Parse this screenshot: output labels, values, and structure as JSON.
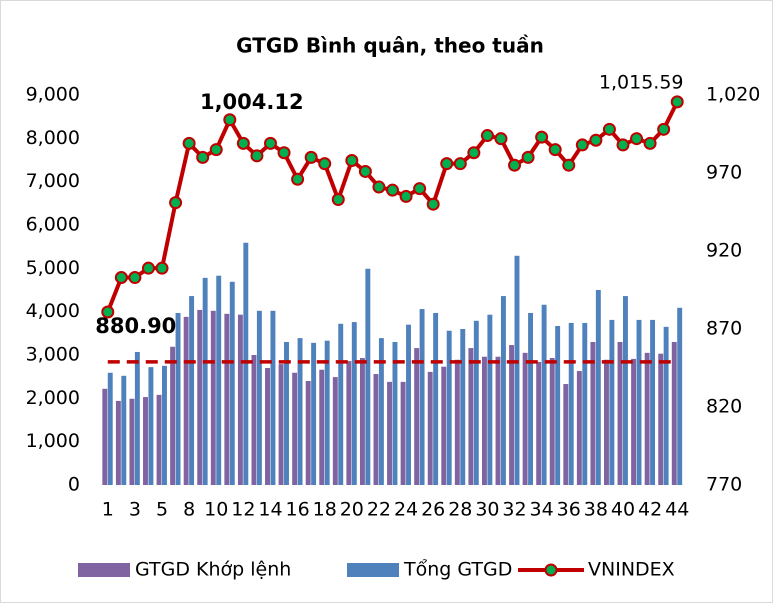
{
  "chart_data": {
    "type": "bar",
    "title": "GTGD Bình quân, theo tuần",
    "categories": [
      "1",
      null,
      "3",
      null,
      "5",
      null,
      "8",
      null,
      "10",
      null,
      "12",
      null,
      "14",
      null,
      "16",
      null,
      "18",
      null,
      "20",
      null,
      "22",
      null,
      "24",
      null,
      "26",
      null,
      "28",
      null,
      "30",
      null,
      "32",
      null,
      "34",
      null,
      "36",
      null,
      "38",
      null,
      "40",
      null,
      "42",
      null,
      "44"
    ],
    "series": [
      {
        "name": "GTGD Khớp lệnh",
        "type": "bar",
        "axis": "y",
        "color": "#8064a2",
        "values": [
          2220,
          1940,
          1990,
          2030,
          2080,
          3190,
          3880,
          4040,
          4020,
          3950,
          3930,
          3000,
          2700,
          2790,
          2590,
          2400,
          2660,
          2490,
          2860,
          2930,
          2560,
          2380,
          2380,
          3160,
          2610,
          2730,
          2890,
          3160,
          2960,
          2960,
          3230,
          3050,
          2840,
          2930,
          2330,
          2630,
          3300,
          2890,
          3300,
          2910,
          3050,
          3030,
          3300
        ]
      },
      {
        "name": "Tổng GTGD",
        "type": "bar",
        "axis": "y",
        "color": "#4f81bd",
        "values": [
          2590,
          2520,
          3070,
          2720,
          2750,
          3970,
          4360,
          4780,
          4830,
          4690,
          5590,
          4020,
          4020,
          3300,
          3390,
          3280,
          3330,
          3720,
          3760,
          4990,
          3390,
          3300,
          3700,
          4060,
          3970,
          3560,
          3600,
          3790,
          3930,
          4360,
          5290,
          3970,
          4160,
          3670,
          3740,
          3740,
          4500,
          3810,
          4360,
          3810,
          3810,
          3650,
          4090
        ]
      },
      {
        "name": "VNINDEX",
        "type": "line",
        "axis": "y2",
        "color": "#c00000",
        "marker_color": "#00b050",
        "values": [
          880.9,
          903,
          903,
          909,
          909,
          951,
          989,
          980,
          985,
          1004.12,
          989,
          981,
          989,
          983,
          966,
          980,
          976,
          953,
          978,
          971,
          961,
          959,
          955,
          960,
          950,
          976,
          976,
          983,
          994,
          992,
          975,
          980,
          993,
          985,
          975,
          988,
          991,
          998,
          988,
          992,
          989,
          998,
          1015.59
        ],
        "value_labels": [
          "880.90",
          null,
          null,
          null,
          null,
          null,
          null,
          null,
          null,
          "1,004.12",
          null,
          null,
          null,
          null,
          null,
          null,
          null,
          null,
          null,
          null,
          null,
          null,
          null,
          null,
          null,
          null,
          null,
          null,
          null,
          null,
          null,
          null,
          null,
          null,
          null,
          null,
          null,
          null,
          null,
          null,
          null,
          null,
          "1,015.59"
        ]
      }
    ],
    "reference_line": {
      "value": 2840,
      "axis": "y",
      "color": "#c00000",
      "dashed": true
    },
    "ylim": [
      0,
      9000
    ],
    "yticks": [
      0,
      {
        "value": 1000,
        "label": "1,000"
      },
      {
        "value": 2000,
        "label": "2,000"
      },
      {
        "value": 3000,
        "label": "3,000"
      },
      {
        "value": 4000,
        "label": "4,000"
      },
      {
        "value": 5000,
        "label": "5,000"
      },
      {
        "value": 6000,
        "label": "6,000"
      },
      {
        "value": 7000,
        "label": "7,000"
      },
      {
        "value": 8000,
        "label": "8,000"
      },
      {
        "value": 9000,
        "label": "9,000"
      }
    ],
    "y2lim": [
      770,
      1020
    ],
    "y2ticks": [
      770,
      820,
      870,
      920,
      970,
      {
        "value": 1020,
        "label": "1,020"
      }
    ],
    "grid": false,
    "legend": "bottom"
  }
}
